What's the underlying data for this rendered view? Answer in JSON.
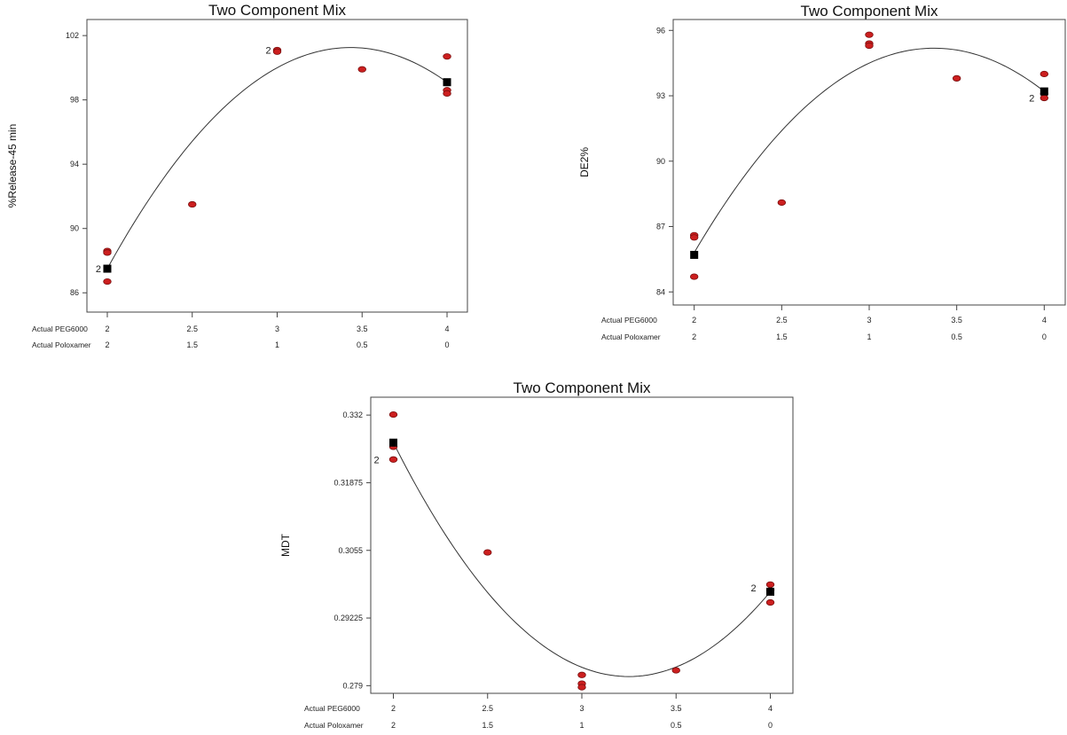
{
  "chart_data": [
    {
      "type": "scatter",
      "title": "Two Component Mix",
      "ylabel": "%Release-45 min",
      "x_rows": [
        {
          "label": "Actual PEG6000",
          "ticks": [
            "2",
            "2.5",
            "3",
            "3.5",
            "4"
          ]
        },
        {
          "label": "Actual Poloxamer",
          "ticks": [
            "2",
            "1.5",
            "1",
            "0.5",
            "0"
          ]
        }
      ],
      "xlim": [
        2,
        4
      ],
      "ylim": [
        84.8,
        103
      ],
      "yticks": [
        86,
        90,
        94,
        98,
        102
      ],
      "ytick_labels": [
        "86",
        "90",
        "94",
        "98",
        "102"
      ],
      "points": [
        {
          "x": 2,
          "y": 88.6
        },
        {
          "x": 2,
          "y": 88.5
        },
        {
          "x": 2,
          "y": 86.7
        },
        {
          "x": 2.5,
          "y": 91.5
        },
        {
          "x": 3,
          "y": 101.1
        },
        {
          "x": 3,
          "y": 101.0
        },
        {
          "x": 3.5,
          "y": 99.9
        },
        {
          "x": 4,
          "y": 100.7
        },
        {
          "x": 4,
          "y": 98.6
        },
        {
          "x": 4,
          "y": 98.4
        }
      ],
      "design_points": [
        {
          "x": 2,
          "y": 87.5
        },
        {
          "x": 4,
          "y": 99.1
        }
      ],
      "replicate_labels": [
        {
          "x": 2,
          "y": 87.5,
          "text": "2",
          "side": "left"
        },
        {
          "x": 3,
          "y": 101.1,
          "text": "2",
          "side": "left"
        }
      ],
      "curve": {
        "points": [
          [
            2,
            87.5
          ],
          [
            3,
            100.0
          ],
          [
            4,
            99.1
          ]
        ]
      },
      "grid": false
    },
    {
      "type": "scatter",
      "title": "Two Component Mix",
      "ylabel": "DE2%",
      "x_rows": [
        {
          "label": "Actual PEG6000",
          "ticks": [
            "2",
            "2.5",
            "3",
            "3.5",
            "4"
          ]
        },
        {
          "label": "Actual Poloxamer",
          "ticks": [
            "2",
            "1.5",
            "1",
            "0.5",
            "0"
          ]
        }
      ],
      "xlim": [
        2,
        4
      ],
      "ylim": [
        83.4,
        96.5
      ],
      "yticks": [
        84,
        87,
        90,
        93,
        96
      ],
      "ytick_labels": [
        "84",
        "87",
        "90",
        "93",
        "96"
      ],
      "points": [
        {
          "x": 2,
          "y": 86.6
        },
        {
          "x": 2,
          "y": 86.5
        },
        {
          "x": 2,
          "y": 84.7
        },
        {
          "x": 2.5,
          "y": 88.1
        },
        {
          "x": 3,
          "y": 95.8
        },
        {
          "x": 3,
          "y": 95.4
        },
        {
          "x": 3,
          "y": 95.3
        },
        {
          "x": 3.5,
          "y": 93.8
        },
        {
          "x": 4,
          "y": 94.0
        },
        {
          "x": 4,
          "y": 93.1
        },
        {
          "x": 4,
          "y": 92.9
        }
      ],
      "design_points": [
        {
          "x": 2,
          "y": 85.7
        },
        {
          "x": 4,
          "y": 93.2
        }
      ],
      "replicate_labels": [
        {
          "x": 4,
          "y": 92.9,
          "text": "2",
          "side": "left"
        }
      ],
      "curve": {
        "points": [
          [
            2,
            85.8
          ],
          [
            3,
            94.5
          ],
          [
            4,
            93.2
          ]
        ]
      },
      "grid": false
    },
    {
      "type": "scatter",
      "title": "Two Component Mix",
      "ylabel": "MDT",
      "x_rows": [
        {
          "label": "Actual PEG6000",
          "ticks": [
            "2",
            "2.5",
            "3",
            "3.5",
            "4"
          ]
        },
        {
          "label": "Actual Poloxamer",
          "ticks": [
            "2",
            "1.5",
            "1",
            "0.5",
            "0"
          ]
        }
      ],
      "xlim": [
        2,
        4
      ],
      "ylim": [
        0.2775,
        0.3355
      ],
      "yticks": [
        0.279,
        0.29225,
        0.3055,
        0.31875,
        0.332
      ],
      "ytick_labels": [
        "0.279",
        "0.29225",
        "0.3055",
        "0.31875",
        "0.332"
      ],
      "points": [
        {
          "x": 2,
          "y": 0.3321
        },
        {
          "x": 2,
          "y": 0.3258
        },
        {
          "x": 2,
          "y": 0.3233
        },
        {
          "x": 2.5,
          "y": 0.3051
        },
        {
          "x": 3,
          "y": 0.2811
        },
        {
          "x": 3,
          "y": 0.2794
        },
        {
          "x": 3,
          "y": 0.2787
        },
        {
          "x": 3.5,
          "y": 0.282
        },
        {
          "x": 4,
          "y": 0.2988
        },
        {
          "x": 4,
          "y": 0.2977
        },
        {
          "x": 4,
          "y": 0.2953
        }
      ],
      "design_points": [
        {
          "x": 2,
          "y": 0.3266
        },
        {
          "x": 4,
          "y": 0.2974
        }
      ],
      "replicate_labels": [
        {
          "x": 2,
          "y": 0.3233,
          "text": "2",
          "side": "left"
        },
        {
          "x": 4,
          "y": 0.2982,
          "text": "2",
          "side": "left"
        }
      ],
      "curve": {
        "points": [
          [
            2,
            0.3266
          ],
          [
            3,
            0.2826
          ],
          [
            4,
            0.2974
          ]
        ]
      },
      "grid": false
    }
  ],
  "colors": {
    "point": "#cc1f1f",
    "point_edge": "#7a0f0f",
    "design": "#000000",
    "curve": "#333333",
    "axis": "#444444"
  }
}
